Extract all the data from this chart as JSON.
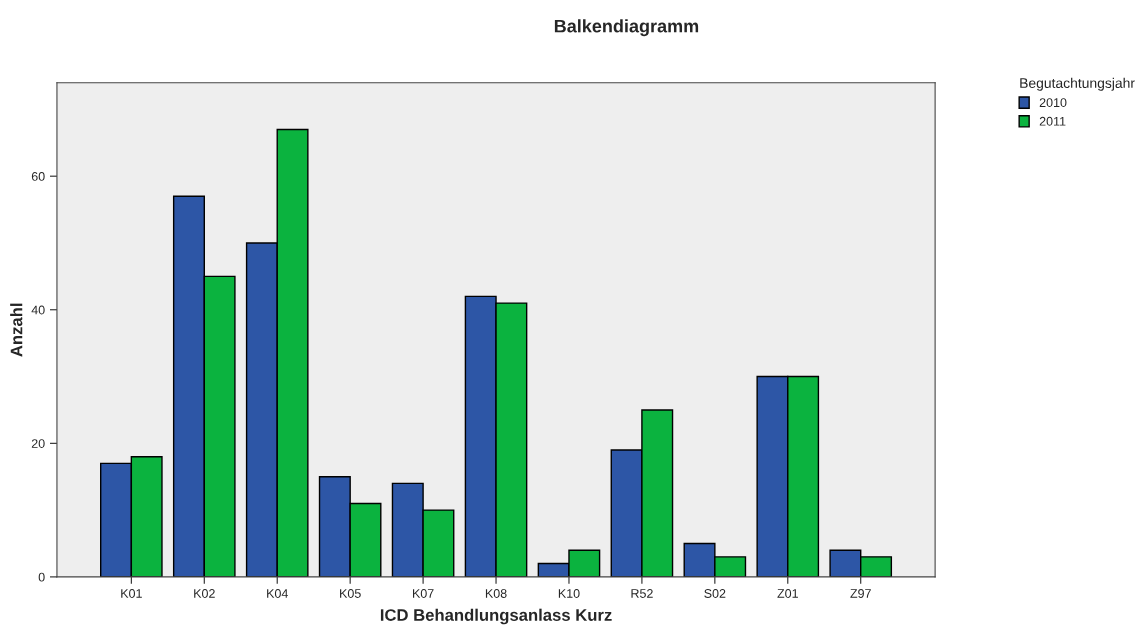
{
  "chart_data": {
    "type": "bar",
    "title": "Balkendiagramm",
    "xlabel": "ICD Behandlungsanlass Kurz",
    "ylabel": "Anzahl",
    "legend_title": "Begutachtungsjahr",
    "categories": [
      "K01",
      "K02",
      "K04",
      "K05",
      "K07",
      "K08",
      "K10",
      "R52",
      "S02",
      "Z01",
      "Z97"
    ],
    "series": [
      {
        "name": "2010",
        "color": "#2d56a6",
        "values": [
          17,
          57,
          50,
          15,
          14,
          42,
          2,
          19,
          5,
          30,
          4
        ]
      },
      {
        "name": "2011",
        "color": "#0bb33f",
        "values": [
          18,
          45,
          67,
          11,
          10,
          41,
          4,
          25,
          3,
          30,
          3
        ]
      }
    ],
    "ylim": [
      0,
      74
    ],
    "yticks": [
      0,
      20,
      40,
      60
    ],
    "grid": false,
    "legend": "top right"
  }
}
